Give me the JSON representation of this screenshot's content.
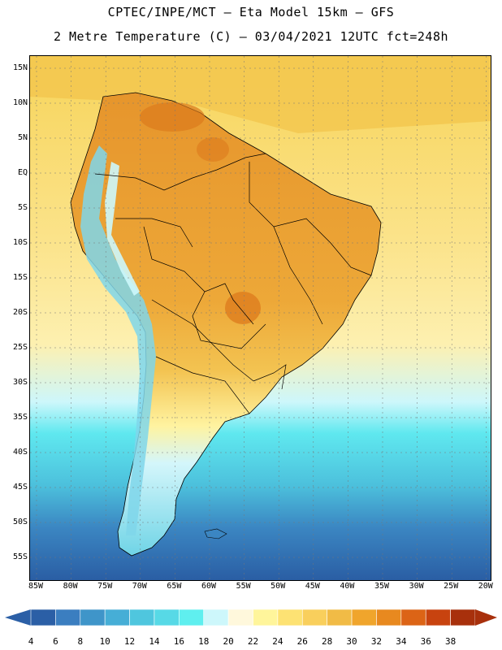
{
  "title_line1": "CPTEC/INPE/MCT –  Eta Model 15km – GFS",
  "title_line2": "2 Metre Temperature (C) – 03/04/2021 12UTC fct=248h",
  "lat_labels": [
    "15N",
    "10N",
    "5N",
    "EQ",
    "5S",
    "10S",
    "15S",
    "20S",
    "25S",
    "30S",
    "35S",
    "40S",
    "45S",
    "50S",
    "55S"
  ],
  "lon_labels": [
    "85W",
    "80W",
    "75W",
    "70W",
    "65W",
    "60W",
    "55W",
    "50W",
    "45W",
    "40W",
    "35W",
    "30W",
    "25W",
    "20W"
  ],
  "colorbar": {
    "labels": [
      "4",
      "6",
      "8",
      "10",
      "12",
      "14",
      "16",
      "18",
      "20",
      "22",
      "24",
      "26",
      "28",
      "30",
      "32",
      "34",
      "36",
      "38"
    ],
    "colors": [
      "#2b5fa6",
      "#3b7ec0",
      "#3f95c9",
      "#46aed6",
      "#4fc6de",
      "#57d9e6",
      "#5fefef",
      "#cdf7fb",
      "#fff8dc",
      "#fff59b",
      "#fde273",
      "#f9cf5c",
      "#f1bb46",
      "#f0a52c",
      "#e8891f",
      "#dc6416",
      "#c8430f",
      "#a8300c"
    ]
  },
  "colors": {
    "ocean_warm": "#f9d65e",
    "ocean_mid": "#fbe88a",
    "ocean_cool": "#5fe0ef",
    "ocean_cold": "#2e6fb0",
    "land_hot": "#e79a2e",
    "andes": "#7fd6ea"
  }
}
